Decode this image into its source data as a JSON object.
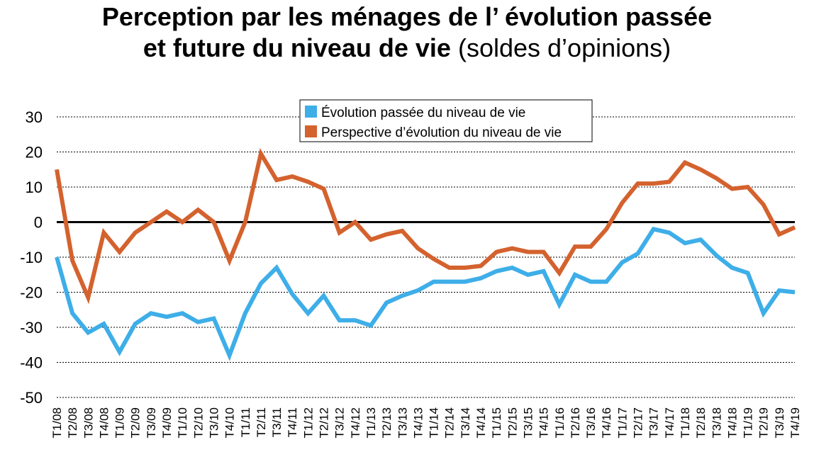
{
  "title_line1": "Perception par les ménages de l’ évolution passée",
  "title_line2_bold": "et future du niveau de vie",
  "title_line2_light": "(soldes d’opinions)",
  "chart_data": {
    "type": "line",
    "title": "Perception par les ménages de l’ évolution passée et future du niveau de vie (soldes d’opinions)",
    "categories": [
      "T1/08",
      "T2/08",
      "T3/08",
      "T4/08",
      "T1/09",
      "T2/09",
      "T3/09",
      "T4/09",
      "T1/10",
      "T2/10",
      "T3/10",
      "T4/10",
      "T1/11",
      "T2/11",
      "T3/11",
      "T4/11",
      "T1/12",
      "T2/12",
      "T3/12",
      "T4/12",
      "T1/13",
      "T2/13",
      "T3/13",
      "T4/13",
      "T1/14",
      "T2/14",
      "T3/14",
      "T4/14",
      "T1/15",
      "T2/15",
      "T3/15",
      "T4/15",
      "T1/16",
      "T2/16",
      "T3/16",
      "T4/16",
      "T1/17",
      "T2/17",
      "T3/17",
      "T4/17",
      "T1/18",
      "T2/18",
      "T3/18",
      "T4/18",
      "T1/19",
      "T2/19",
      "T3/19",
      "T4/19"
    ],
    "series": [
      {
        "name": "Évolution passée du niveau de vie",
        "color": "#3eaee8",
        "values": [
          -10,
          -26,
          -31.5,
          -29,
          -37,
          -29,
          -26,
          -27,
          -26,
          -28.5,
          -27.5,
          -38,
          -26,
          -17.5,
          -13,
          -20.5,
          -26,
          -21,
          -28,
          -28,
          -29.5,
          -23,
          -21,
          -19.5,
          -17,
          -17,
          -17,
          -16,
          -14,
          -13,
          -15,
          -14,
          -23.5,
          -15,
          -17,
          -17,
          -11.5,
          -9,
          -2,
          -3,
          -6,
          -5,
          -9.5,
          -13,
          -14.5,
          -26,
          -19.5,
          -20
        ]
      },
      {
        "name": "Perspective d’évolution du niveau de vie",
        "color": "#d4622e",
        "values": [
          15,
          -11,
          -21.5,
          -3,
          -8.5,
          -3,
          0,
          3,
          0,
          3.5,
          0,
          -11,
          0,
          19.5,
          12,
          13,
          11.5,
          9.5,
          -3,
          0,
          -5,
          -3.5,
          -2.5,
          -7.5,
          -10.5,
          -13,
          -13,
          -12.5,
          -8.5,
          -7.5,
          -8.5,
          -8.5,
          -14.5,
          -7,
          -7,
          -2,
          5.5,
          11,
          11,
          11.5,
          17,
          15,
          12.5,
          9.5,
          10,
          5,
          -3.5,
          -1.5
        ]
      }
    ],
    "y_ticks": [
      "30",
      "20",
      "10",
      "0",
      "-10",
      "-20",
      "-30",
      "-40",
      "-50"
    ],
    "ylim": [
      -50,
      30
    ],
    "xlabel": "",
    "ylabel": "",
    "grid": true,
    "legend_position": "top-center"
  }
}
